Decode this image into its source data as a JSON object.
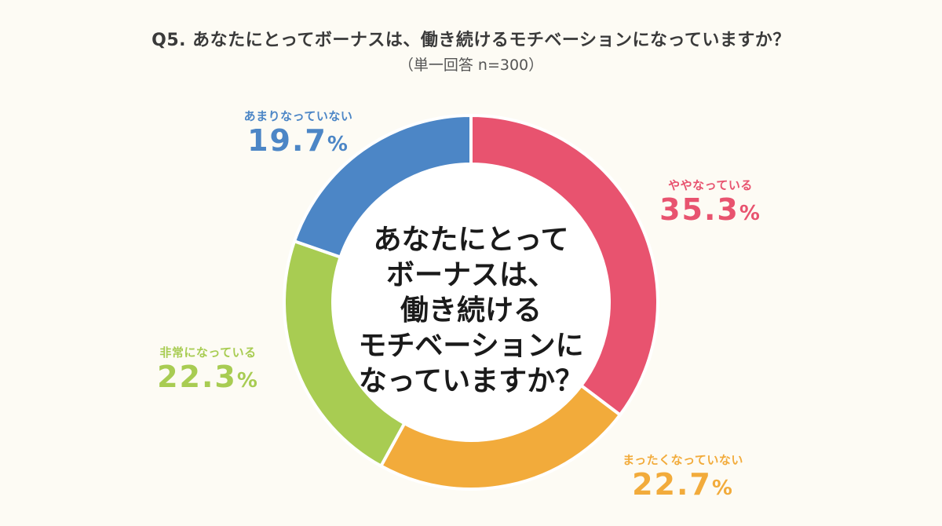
{
  "title": "Q5. あなたにとってボーナスは、働き続けるモチベーションになっていますか？",
  "subtitle": "（単一回答 n=300）",
  "center_lines": [
    "あなたにとって",
    "ボーナスは、",
    "働き続ける",
    "モチベーションに",
    "なっていますか？"
  ],
  "chart_data": {
    "type": "pie",
    "donut": true,
    "start_angle_deg": 0,
    "direction": "clockwise",
    "slices": [
      {
        "label": "ややなっている",
        "value": 35.3,
        "display": "35.3",
        "unit": "%",
        "color": "#e8536f"
      },
      {
        "label": "まったくなっていない",
        "value": 22.7,
        "display": "22.7",
        "unit": "%",
        "color": "#f2ab3b"
      },
      {
        "label": "非常になっている",
        "value": 22.3,
        "display": "22.3",
        "unit": "%",
        "color": "#a8cc52"
      },
      {
        "label": "あまりなっていない",
        "value": 19.7,
        "display": "19.7",
        "unit": "%",
        "color": "#4c86c6"
      }
    ]
  }
}
